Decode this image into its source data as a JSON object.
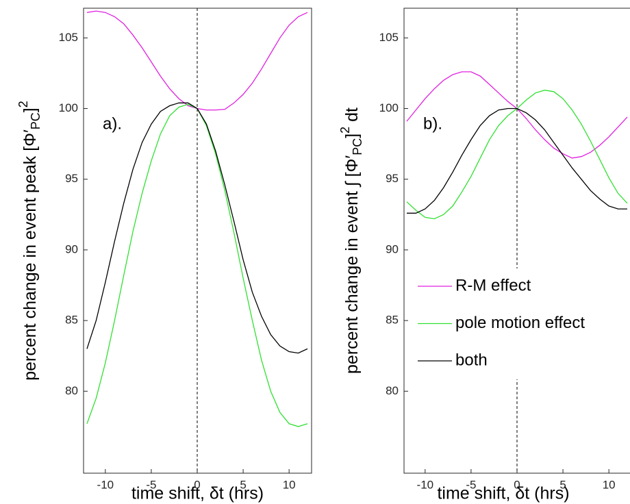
{
  "chart_data": [
    {
      "type": "line",
      "panel_label": "a).",
      "xlabel": "time shift, δt (hrs)",
      "ylabel": [
        "percent change in event peak [Φ′",
        "PC",
        "]",
        "2"
      ],
      "x": [
        -12,
        -11,
        -10,
        -9,
        -8,
        -7,
        -6,
        -5,
        -4,
        -3,
        -2,
        -1,
        0,
        1,
        2,
        3,
        4,
        5,
        6,
        7,
        8,
        9,
        10,
        11,
        12
      ],
      "series": [
        {
          "name": "R-M effect",
          "color": "#e020e0",
          "values": [
            106.8,
            106.9,
            106.8,
            106.5,
            106,
            105.2,
            104.3,
            103.3,
            102.3,
            101.4,
            100.7,
            100.2,
            100,
            99.9,
            99.9,
            99.95,
            100.4,
            101,
            101.8,
            102.8,
            103.9,
            105,
            105.9,
            106.5,
            106.8
          ]
        },
        {
          "name": "pole motion effect",
          "color": "#30e030",
          "values": [
            77.7,
            79.5,
            82,
            85,
            88.2,
            91.3,
            94,
            96.3,
            98.2,
            99.5,
            100.1,
            100.3,
            100,
            98.8,
            96.8,
            94.2,
            91.2,
            88,
            85,
            82.2,
            80,
            78.5,
            77.7,
            77.5,
            77.7
          ]
        },
        {
          "name": "both",
          "color": "#000000",
          "values": [
            83,
            85,
            87.7,
            90.6,
            93.3,
            95.7,
            97.6,
            98.9,
            99.8,
            100.2,
            100.4,
            100.4,
            100,
            98.9,
            97,
            94.6,
            92,
            89.3,
            87,
            85.3,
            84,
            83.2,
            82.8,
            82.7,
            83
          ]
        }
      ],
      "xlim": [
        -12,
        12
      ],
      "ylim": [
        74.2,
        107.1
      ],
      "xticks": [
        -10,
        -5,
        0,
        5,
        10
      ],
      "yticks": [
        80,
        85,
        90,
        95,
        100,
        105
      ],
      "vline": 0,
      "legend": false
    },
    {
      "type": "line",
      "panel_label": "b).",
      "xlabel": "time shift, δt (hrs)",
      "ylabel": [
        "percent change in event ∫ [Φ′",
        "PC",
        "]",
        "2",
        " dt"
      ],
      "x": [
        -12,
        -11,
        -10,
        -9,
        -8,
        -7,
        -6,
        -5,
        -4,
        -3,
        -2,
        -1,
        0,
        1,
        2,
        3,
        4,
        5,
        6,
        7,
        8,
        9,
        10,
        11,
        12
      ],
      "series": [
        {
          "name": "R-M effect",
          "color": "#e020e0",
          "values": [
            99.1,
            99.9,
            100.7,
            101.4,
            102,
            102.4,
            102.6,
            102.6,
            102.3,
            101.7,
            101.1,
            100.5,
            100,
            99.3,
            98.5,
            97.8,
            97.2,
            96.8,
            96.5,
            96.6,
            96.9,
            97.4,
            98,
            98.7,
            99.4
          ]
        },
        {
          "name": "pole motion effect",
          "color": "#30e030",
          "values": [
            93.4,
            92.8,
            92.3,
            92.2,
            92.5,
            93.1,
            94.1,
            95.2,
            96.5,
            97.8,
            98.8,
            99.5,
            100,
            100.6,
            101.1,
            101.3,
            101.2,
            100.7,
            99.9,
            98.9,
            97.7,
            96.4,
            95.1,
            94,
            93.3
          ]
        },
        {
          "name": "both",
          "color": "#000000",
          "values": [
            92.6,
            92.6,
            92.9,
            93.5,
            94.4,
            95.5,
            96.7,
            97.8,
            98.8,
            99.5,
            99.9,
            100,
            100,
            99.7,
            99.2,
            98.5,
            97.6,
            96.7,
            95.8,
            95,
            94.2,
            93.6,
            93.1,
            92.9,
            92.9
          ]
        }
      ],
      "xlim": [
        -12,
        12
      ],
      "ylim": [
        74.2,
        107.1
      ],
      "xticks": [
        -10,
        -5,
        0,
        5,
        10
      ],
      "yticks": [
        80,
        85,
        90,
        95,
        100,
        105
      ],
      "vline": 0,
      "legend": true
    }
  ]
}
